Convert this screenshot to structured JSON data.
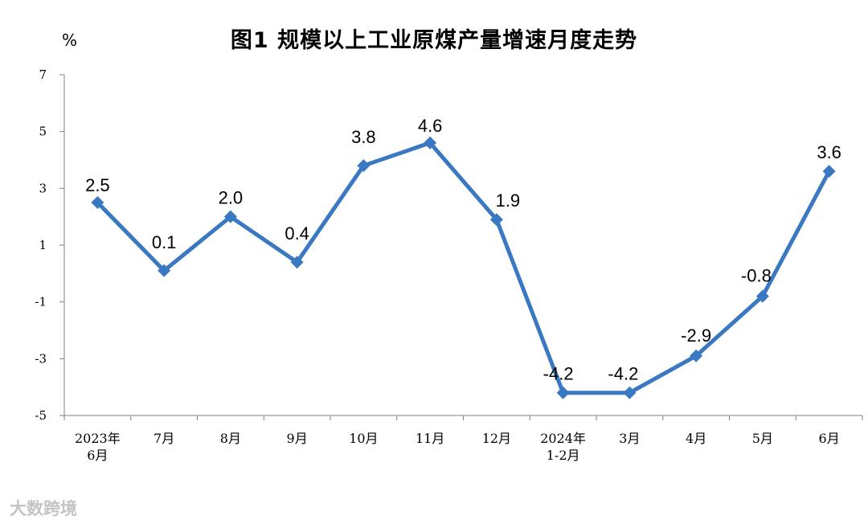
{
  "title": "图1  规模以上工业原煤产量增速月度走势",
  "unit_label": "%",
  "watermark": "大数跨境",
  "colors": {
    "line": "#3a78c2",
    "axis": "#808080"
  },
  "chart_data": {
    "type": "line",
    "title": "图1  规模以上工业原煤产量增速月度走势",
    "ylabel": "%",
    "xlabel": "",
    "ylim": [
      -5,
      7
    ],
    "yticks": [
      7,
      5,
      3,
      1,
      -1,
      -3,
      -5
    ],
    "ytick_labels": [
      "7",
      "5",
      "3",
      "1",
      "-1",
      "-3",
      "-5"
    ],
    "categories": [
      [
        "2023年",
        "6月"
      ],
      [
        "7月"
      ],
      [
        "8月"
      ],
      [
        "9月"
      ],
      [
        "10月"
      ],
      [
        "11月"
      ],
      [
        "12月"
      ],
      [
        "2024年",
        "1-2月"
      ],
      [
        "3月"
      ],
      [
        "4月"
      ],
      [
        "5月"
      ],
      [
        "6月"
      ]
    ],
    "series": [
      {
        "values": [
          2.5,
          0.1,
          2.0,
          0.4,
          3.8,
          4.6,
          1.9,
          -4.2,
          -4.2,
          -2.9,
          -0.8,
          3.6
        ],
        "labels": [
          "2.5",
          "0.1",
          "2.0",
          "0.4",
          "3.8",
          "4.6",
          "1.9",
          "-4.2",
          "-4.2",
          "-2.9",
          "-0.8",
          "3.6"
        ],
        "marker": "diamond"
      }
    ],
    "grid": false,
    "legend": "none"
  }
}
